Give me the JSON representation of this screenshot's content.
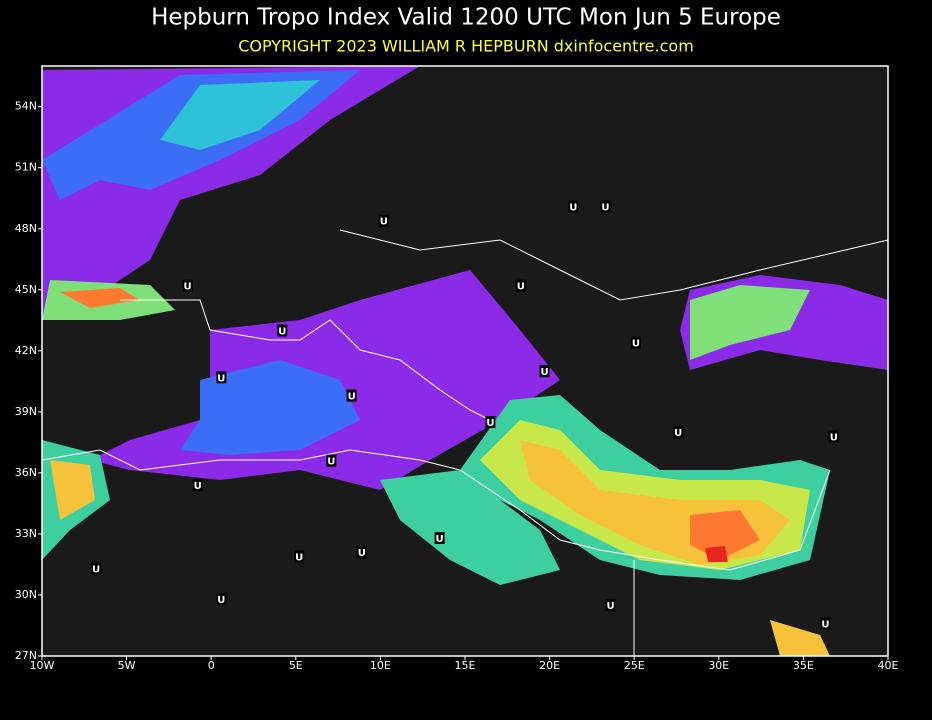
{
  "map": {
    "title": "Hepburn Tropo Index Valid 1200 UTC Mon Jun 5 Europe",
    "subtitle": "COPYRIGHT 2023  WILLIAM R HEPBURN  dxinfocentre.com",
    "lonlim": [
      -10,
      40
    ],
    "latlim": [
      27,
      56
    ],
    "lon_ticks": [
      {
        "value": -10,
        "label": "10W"
      },
      {
        "value": -5,
        "label": "5W"
      },
      0,
      {
        "value": 5,
        "label": "5E"
      },
      {
        "value": 10,
        "label": "10E"
      },
      {
        "value": 15,
        "label": "15E"
      },
      {
        "value": 20,
        "label": "20E"
      },
      {
        "value": 25,
        "label": "25E"
      },
      {
        "value": 30,
        "label": "30E"
      },
      {
        "value": 35,
        "label": "35E"
      },
      {
        "value": 40,
        "label": "40E"
      }
    ],
    "lat_ticks": [
      {
        "value": 27,
        "label": "27N"
      },
      {
        "value": 30,
        "label": "30N"
      },
      {
        "value": 33,
        "label": "33N"
      },
      {
        "value": 36,
        "label": "36N"
      },
      {
        "value": 39,
        "label": "39N"
      },
      {
        "value": 42,
        "label": "42N"
      },
      {
        "value": 45,
        "label": "45N"
      },
      {
        "value": 48,
        "label": "48N"
      },
      {
        "value": 51,
        "label": "51N"
      },
      {
        "value": 54,
        "label": "54N"
      }
    ],
    "markers": [
      {
        "label": "U",
        "lon": 10.2,
        "lat": 48.4
      },
      {
        "label": "U",
        "lon": 21.4,
        "lat": 49.1
      },
      {
        "label": "U",
        "lon": 23.3,
        "lat": 49.1
      },
      {
        "label": "U",
        "lon": -1.4,
        "lat": 45.2
      },
      {
        "label": "U",
        "lon": 18.3,
        "lat": 45.2
      },
      {
        "label": "U",
        "lon": 4.2,
        "lat": 43.0
      },
      {
        "label": "U",
        "lon": 25.1,
        "lat": 42.4
      },
      {
        "label": "U",
        "lon": 0.6,
        "lat": 40.7
      },
      {
        "label": "U",
        "lon": 19.7,
        "lat": 41.0
      },
      {
        "label": "U",
        "lon": 8.3,
        "lat": 39.8
      },
      {
        "label": "U",
        "lon": 16.5,
        "lat": 38.5
      },
      {
        "label": "U",
        "lon": 27.6,
        "lat": 38.0
      },
      {
        "label": "U",
        "lon": 36.8,
        "lat": 37.8
      },
      {
        "label": "U",
        "lon": 7.1,
        "lat": 36.6
      },
      {
        "label": "U",
        "lon": -0.8,
        "lat": 35.4
      },
      {
        "label": "U",
        "lon": 13.5,
        "lat": 32.8
      },
      {
        "label": "U",
        "lon": 5.2,
        "lat": 31.9
      },
      {
        "label": "U",
        "lon": 8.9,
        "lat": 32.1
      },
      {
        "label": "U",
        "lon": -6.8,
        "lat": 31.3
      },
      {
        "label": "U",
        "lon": 0.6,
        "lat": 29.8
      },
      {
        "label": "U",
        "lon": 23.6,
        "lat": 29.5
      },
      {
        "label": "U",
        "lon": 36.3,
        "lat": 28.6
      }
    ]
  }
}
